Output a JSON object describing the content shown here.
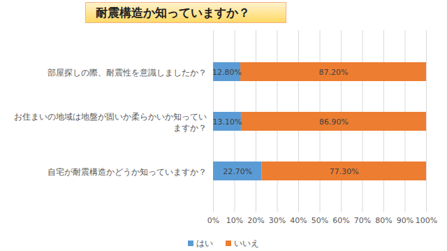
{
  "chart_data": {
    "type": "bar",
    "orientation": "horizontal",
    "stacked": true,
    "title": "耐震構造か知っていますか？",
    "categories": [
      "部屋探しの際、耐震性を意識しましたか？",
      "お住まいの地域は地盤が固いか柔らかいか知っていますか？",
      "自宅が耐震構造かどうか知っていますか？"
    ],
    "series": [
      {
        "name": "はい",
        "color": "#5b9bd5",
        "values": [
          12.8,
          13.1,
          22.7
        ],
        "value_labels": [
          "12.80%",
          "13.10%",
          "22.70%"
        ]
      },
      {
        "name": "いいえ",
        "color": "#ed7d31",
        "values": [
          87.2,
          86.9,
          77.3
        ],
        "value_labels": [
          "87.20%",
          "86.90%",
          "77.30%"
        ]
      }
    ],
    "xlim": [
      0,
      100
    ],
    "xticks": [
      {
        "value": 0,
        "label": "0%"
      },
      {
        "value": 10,
        "label": "10%"
      },
      {
        "value": 20,
        "label": "20%"
      },
      {
        "value": 30,
        "label": "30%"
      },
      {
        "value": 40,
        "label": "40%"
      },
      {
        "value": 50,
        "label": "50%"
      },
      {
        "value": 60,
        "label": "60%"
      },
      {
        "value": 70,
        "label": "70%"
      },
      {
        "value": 80,
        "label": "80%"
      },
      {
        "value": 90,
        "label": "90%"
      },
      {
        "value": 100,
        "label": "100%"
      }
    ],
    "grid": true,
    "data_labels": true,
    "legend": "bottom"
  }
}
